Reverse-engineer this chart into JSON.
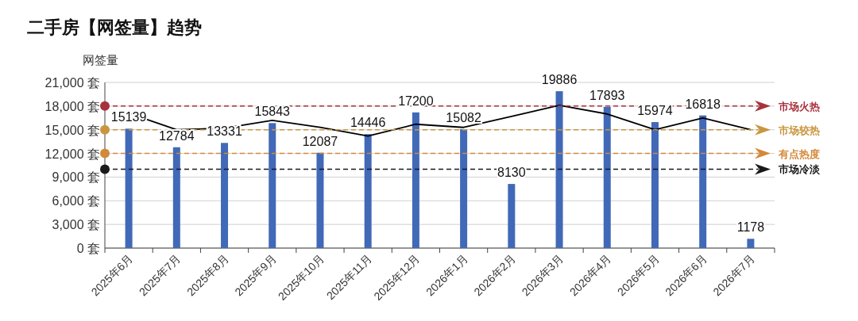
{
  "chart_data": {
    "type": "bar",
    "title": "二手房【网签量】趋势",
    "ylabel": "网签量",
    "categories": [
      "2025年6月",
      "2025年7月",
      "2025年8月",
      "2025年9月",
      "2025年10月",
      "2025年11月",
      "2025年12月",
      "2026年1月",
      "2026年2月",
      "2026年3月",
      "2026年4月",
      "2026年5月",
      "2026年6月",
      "2026年7月"
    ],
    "series": [
      {
        "color": "#4169b8",
        "values": [
          15139,
          12784,
          13331,
          15843,
          12087,
          14446,
          17200,
          15082,
          8130,
          19886,
          17893,
          15974,
          16818,
          1178
        ],
        "value_labels": [
          "15139",
          "12784",
          "13331",
          "15843",
          "12087",
          "14446",
          "17200",
          "15082",
          "8130",
          "19886",
          "17893",
          "15974",
          "16818",
          "1178"
        ]
      },
      {
        "type": "line",
        "color": "#000000",
        "values": [
          17100,
          15000,
          15200,
          16200,
          15300,
          14200,
          15700,
          15300,
          16700,
          18100,
          17000,
          15000,
          16500,
          15000
        ]
      }
    ],
    "ylim": [
      0,
      21000
    ],
    "yticks": [
      {
        "value": 0,
        "label": "0 套"
      },
      {
        "value": 3000,
        "label": "3,000 套"
      },
      {
        "value": 6000,
        "label": "6,000 套"
      },
      {
        "value": 9000,
        "label": "9,000 套"
      },
      {
        "value": 12000,
        "label": "12,000 套"
      },
      {
        "value": 15000,
        "label": "15,000 套"
      },
      {
        "value": 18000,
        "label": "18,000 套"
      },
      {
        "value": 21000,
        "label": "21,000 套"
      }
    ],
    "grid": "y",
    "ref_lines": [
      {
        "axis": "y",
        "value": 18000,
        "label": "市场火热",
        "color": "#a8323e",
        "line_style": "dashed"
      },
      {
        "axis": "y",
        "value": 15000,
        "label": "市场较热",
        "color": "#c9963e",
        "line_style": "dashed"
      },
      {
        "axis": "y",
        "value": 12000,
        "label": "有点热度",
        "color": "#d4893a",
        "line_style": "dashed"
      },
      {
        "axis": "y",
        "value": 10000,
        "label": "市场冷淡",
        "color": "#1a1a1a",
        "line_style": "dashed"
      }
    ]
  }
}
